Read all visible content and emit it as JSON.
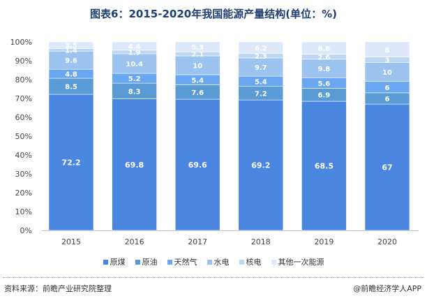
{
  "title": "图表6：2015-2020年我国能源产量结构(单位：%)",
  "chart_data": {
    "type": "bar",
    "stacked": true,
    "percent": true,
    "categories": [
      "2015",
      "2016",
      "2017",
      "2018",
      "2019",
      "2020"
    ],
    "ylim": [
      0,
      100
    ],
    "yticks": [
      "0%",
      "10%",
      "20%",
      "30%",
      "40%",
      "50%",
      "60%",
      "70%",
      "80%",
      "90%",
      "100%"
    ],
    "series": [
      {
        "name": "原煤",
        "color": "#4a86e0",
        "values": [
          72.2,
          69.8,
          69.6,
          69.2,
          68.5,
          67
        ]
      },
      {
        "name": "原油",
        "color": "#5b9bd5",
        "values": [
          8.5,
          8.3,
          7.6,
          7.2,
          6.9,
          6
        ]
      },
      {
        "name": "天然气",
        "color": "#6aa7f0",
        "values": [
          4.8,
          5.2,
          5.4,
          5.4,
          5.6,
          6
        ]
      },
      {
        "name": "水电",
        "color": "#9cc3f0",
        "values": [
          9.6,
          10.4,
          10,
          9.7,
          9.8,
          10
        ]
      },
      {
        "name": "核电",
        "color": "#bcd6f5",
        "values": [
          1.4,
          1.9,
          2.1,
          2.3,
          2.6,
          3
        ]
      },
      {
        "name": "其他一次能源",
        "color": "#dde9fa",
        "values": [
          3.5,
          4.4,
          5.3,
          6.2,
          6.6,
          8
        ]
      }
    ],
    "legend_position": "bottom",
    "grid": false
  },
  "footer": {
    "source": "资料来源：前瞻产业研究院整理",
    "brand": "@前瞻经济学人APP"
  }
}
